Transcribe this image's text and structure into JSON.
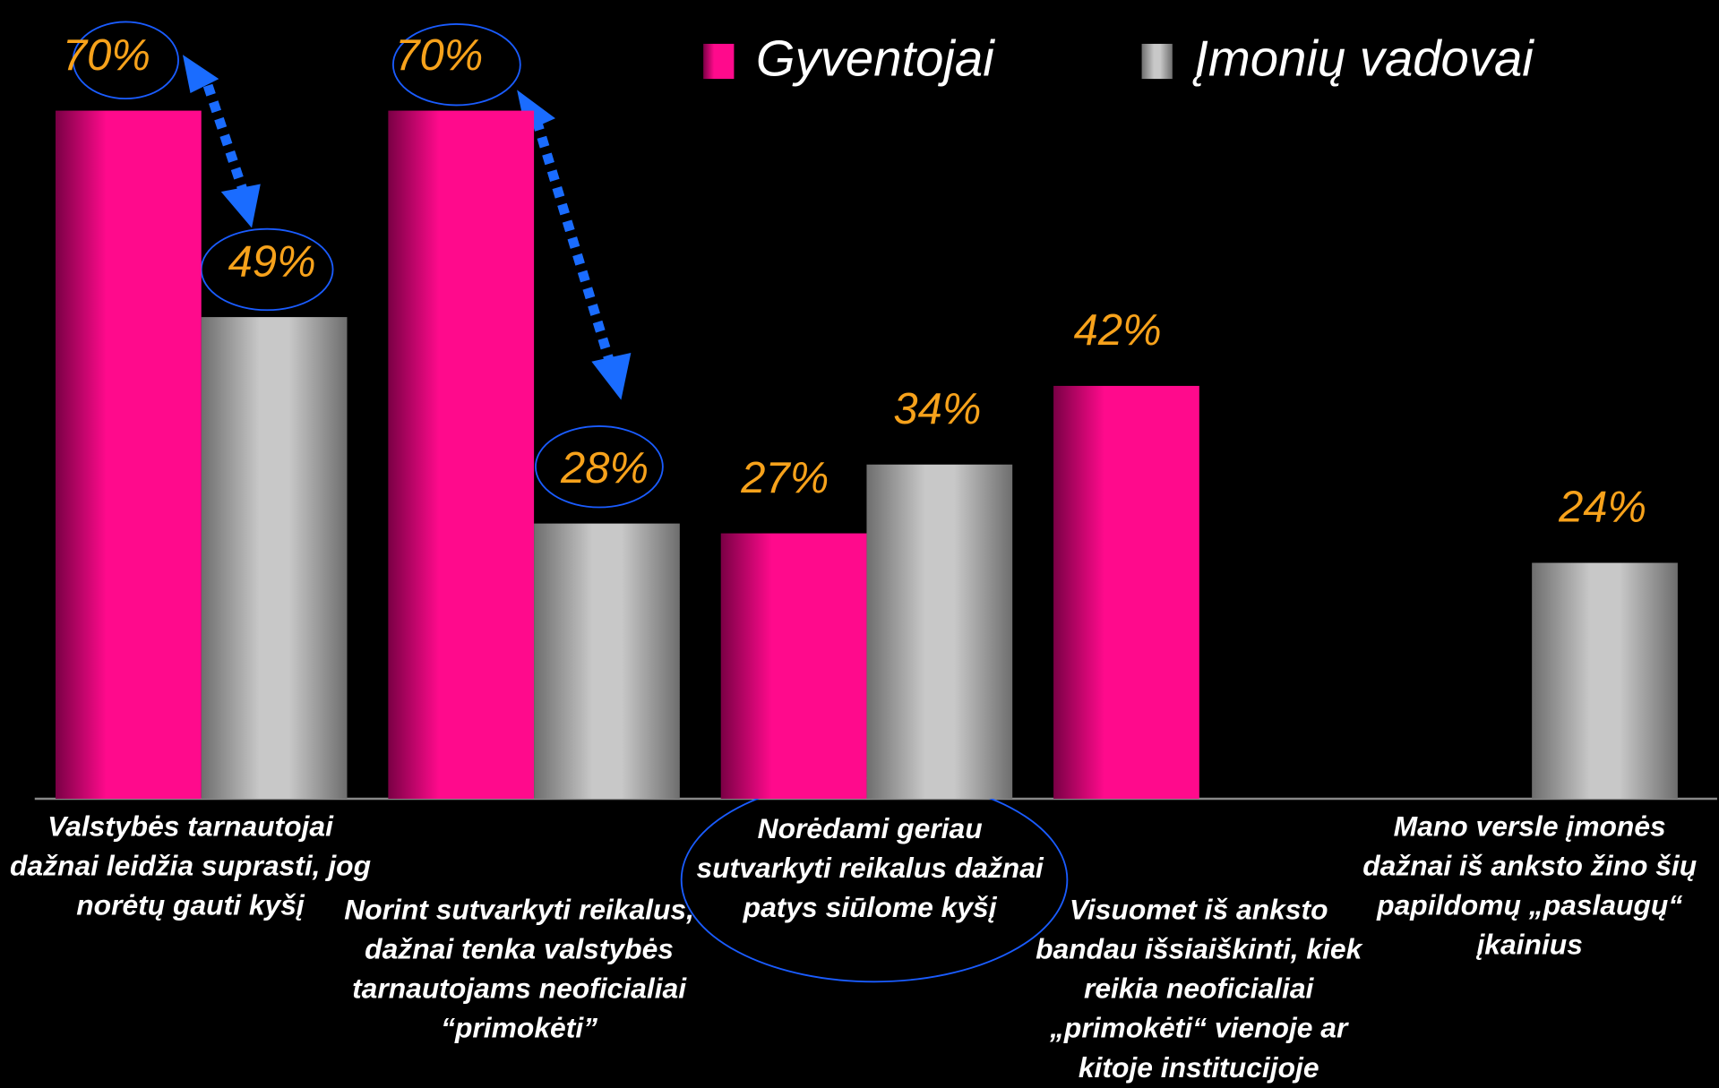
{
  "chart_data": {
    "type": "bar",
    "categories": [
      "Valstybės tarnautojai dažnai leidžia suprasti, jog norėtų gauti kyšį",
      "Norint sutvarkyti reikalus, dažnai tenka valstybės tarnautojams neoficialiai “primokėti”",
      "Norėdami geriau sutvarkyti reikalus dažnai patys siūlome kyšį",
      "Visuomet iš anksto bandau išsiaiškinti, kiek reikia neoficialiai „primokėti“ vienoje ar kitoje institucijoje",
      "Mano versle įmonės dažnai iš anksto žino šių papildomų „paslaugų“ įkainius"
    ],
    "series": [
      {
        "name": "Gyventojai",
        "color": "#ff0a8c",
        "values": [
          70,
          70,
          27,
          42,
          null
        ],
        "value_labels": [
          "70%",
          "70%",
          "27%",
          "42%",
          null
        ]
      },
      {
        "name": "Įmonių vadovai",
        "color": "#c8c8c8",
        "values": [
          49,
          28,
          34,
          null,
          24
        ],
        "value_labels": [
          "49%",
          "28%",
          "34%",
          null,
          "24%"
        ]
      }
    ]
  }
}
